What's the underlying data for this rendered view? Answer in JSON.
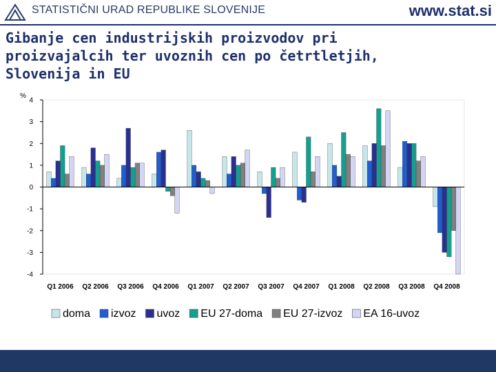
{
  "header": {
    "org_name": "STATISTIČNI URAD REPUBLIKE SLOVENIJE",
    "website": "www.stat.si"
  },
  "title": "Gibanje cen industrijskih proizvodov pri proizvajalcih ter uvoznih cen po četrtletjih, Slovenija in EU",
  "chart_data": {
    "type": "bar",
    "ylabel": "%",
    "ylim": [
      -4,
      4
    ],
    "yticks": [
      4,
      3,
      2,
      1,
      0,
      -1,
      -2,
      -3,
      -4
    ],
    "grid": false,
    "legend_position": "bottom",
    "categories": [
      "Q1 2006",
      "Q2 2006",
      "Q3 2006",
      "Q4 2006",
      "Q1 2007",
      "Q2 2007",
      "Q3 2007",
      "Q4 2007",
      "Q1 2008",
      "Q2 2008",
      "Q3 2008",
      "Q4 2008"
    ],
    "series": [
      {
        "name": "doma",
        "color": "#c6e6ea",
        "values": [
          0.7,
          0.9,
          0.4,
          0.6,
          2.6,
          1.4,
          0.7,
          1.6,
          2.0,
          1.9,
          0.9,
          -0.9
        ]
      },
      {
        "name": "izvoz",
        "color": "#1f5fcf",
        "values": [
          0.4,
          0.6,
          1.0,
          1.6,
          1.0,
          0.6,
          -0.3,
          -0.6,
          1.0,
          1.2,
          2.1,
          -2.1
        ]
      },
      {
        "name": "uvoz",
        "color": "#2b2f8f",
        "values": [
          1.2,
          1.8,
          2.7,
          1.7,
          0.7,
          1.4,
          -1.4,
          -0.7,
          0.5,
          2.0,
          2.0,
          -3.0
        ]
      },
      {
        "name": "EU 27-doma",
        "color": "#159f8f",
        "values": [
          1.9,
          1.2,
          0.9,
          -0.2,
          0.4,
          1.0,
          0.9,
          2.3,
          2.5,
          3.6,
          2.0,
          -3.2
        ]
      },
      {
        "name": "EU 27-izvoz",
        "color": "#808080",
        "values": [
          0.6,
          1.0,
          1.1,
          -0.4,
          0.3,
          1.1,
          0.4,
          0.7,
          1.5,
          1.9,
          1.2,
          -2.0
        ]
      },
      {
        "name": "EA 16-uvoz",
        "color": "#d4d4f4",
        "values": [
          1.4,
          1.5,
          1.1,
          -1.2,
          -0.3,
          1.7,
          0.9,
          1.4,
          1.4,
          3.5,
          1.4,
          -4.0
        ]
      }
    ]
  }
}
